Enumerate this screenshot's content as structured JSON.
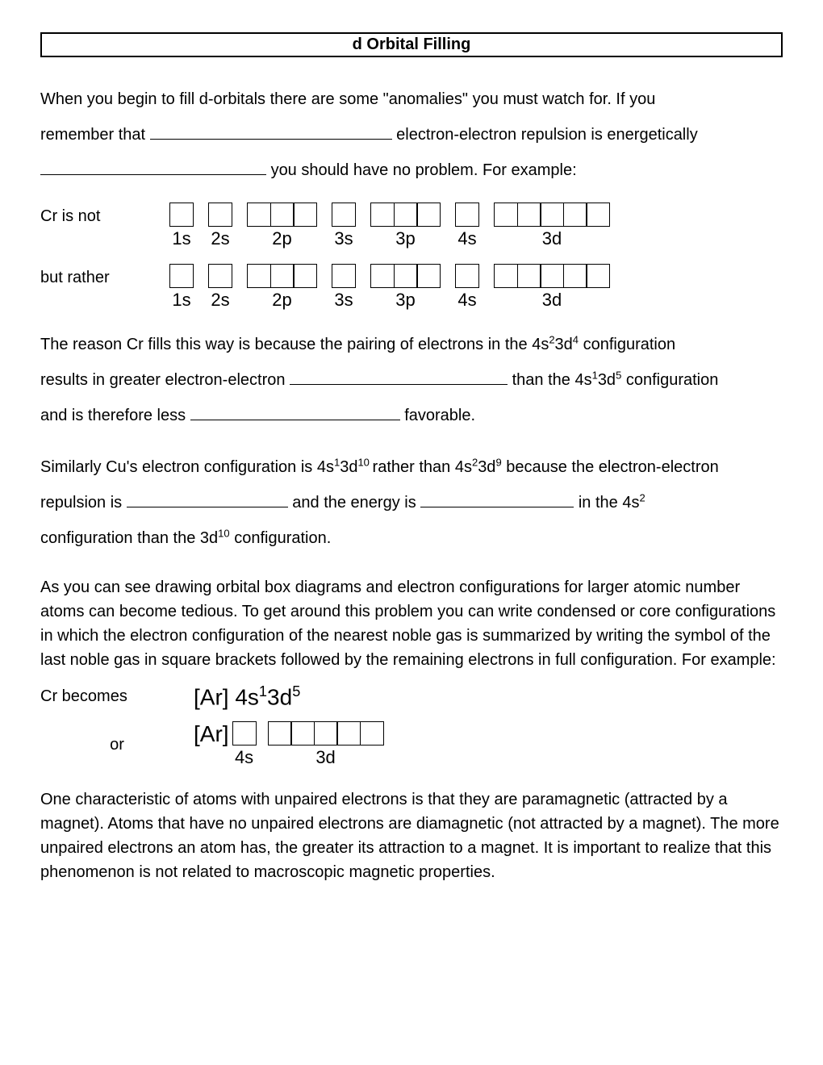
{
  "title": "d Orbital Filling",
  "intro": {
    "line1a": "When you begin to fill d-orbitals there are some \"anomalies\" you must watch for.  If you",
    "line2a": "remember that ",
    "line2b": " electron-electron repulsion is energetically",
    "line3b": " you should have no problem.  For example:"
  },
  "blanks": {
    "b1_width": 300,
    "b2_width": 280,
    "b3_width": 270,
    "b4_width": 260,
    "b5_width": 200,
    "b6_width": 190
  },
  "rows": {
    "r1_label": "Cr is not",
    "r2_label": "but rather",
    "r3_label": "Cr becomes",
    "r4_label": "or"
  },
  "orbital_groups": [
    {
      "label": "1s",
      "count": 1
    },
    {
      "label": "2s",
      "count": 1
    },
    {
      "label": "2p",
      "count": 3
    },
    {
      "label": "3s",
      "count": 1
    },
    {
      "label": "3p",
      "count": 3
    },
    {
      "label": "4s",
      "count": 1
    },
    {
      "label": "3d",
      "count": 5
    }
  ],
  "condensed_groups": [
    {
      "label": "4s",
      "count": 1
    },
    {
      "label": "3d",
      "count": 5
    }
  ],
  "para2": {
    "t1": "The reason Cr fills this way is because the pairing of electrons in the 4s",
    "t1s": "2",
    "t2": "3d",
    "t2s": "4",
    "t3": " configuration",
    "t4": "results in greater electron-electron ",
    "t5": " than the 4s",
    "t5s": "1",
    "t6": "3d",
    "t6s": "5",
    "t7": " configuration",
    "t8": "and is therefore less ",
    "t9": " favorable."
  },
  "para3": {
    "t1": "Similarly Cu's electron configuration is 4s",
    "s1": "1",
    "t2": "3d",
    "s2": "10 ",
    "t3": "rather than 4s",
    "s3": "2",
    "t4": "3d",
    "s4": "9",
    "t5": " because the electron-electron",
    "t6": "repulsion is ",
    "t7": " and the energy  is ",
    "t8": " in the 4s",
    "s5": "2",
    "t9": "configuration than the 3d",
    "s6": "10",
    "t10": " configuration."
  },
  "para4": "As you can see drawing orbital box diagrams and electron configurations for larger atomic number atoms can become tedious.  To get around this problem you can write condensed or core configurations in which the electron configuration of the nearest noble gas is summarized by writing the symbol of the last noble gas in square brackets followed by the remaining electrons in full configuration.  For example:",
  "condensed": {
    "ar": "[Ar] ",
    "c1": "4s",
    "s1": "1",
    "c2": "3d",
    "s2": "5",
    "ar2": "[Ar]"
  },
  "para5": "One characteristic of atoms with unpaired electrons is that they are paramagnetic (attracted by a magnet).  Atoms that have no unpaired electrons are diamagnetic (not attracted by a magnet).  The more unpaired electrons an atom has, the greater its attraction to a magnet.  It is important to realize that this phenomenon is not related to macroscopic magnetic properties.",
  "style": {
    "box_size": 28,
    "box_border": "#000000",
    "bg": "#ffffff",
    "font": "Comic Sans MS"
  }
}
